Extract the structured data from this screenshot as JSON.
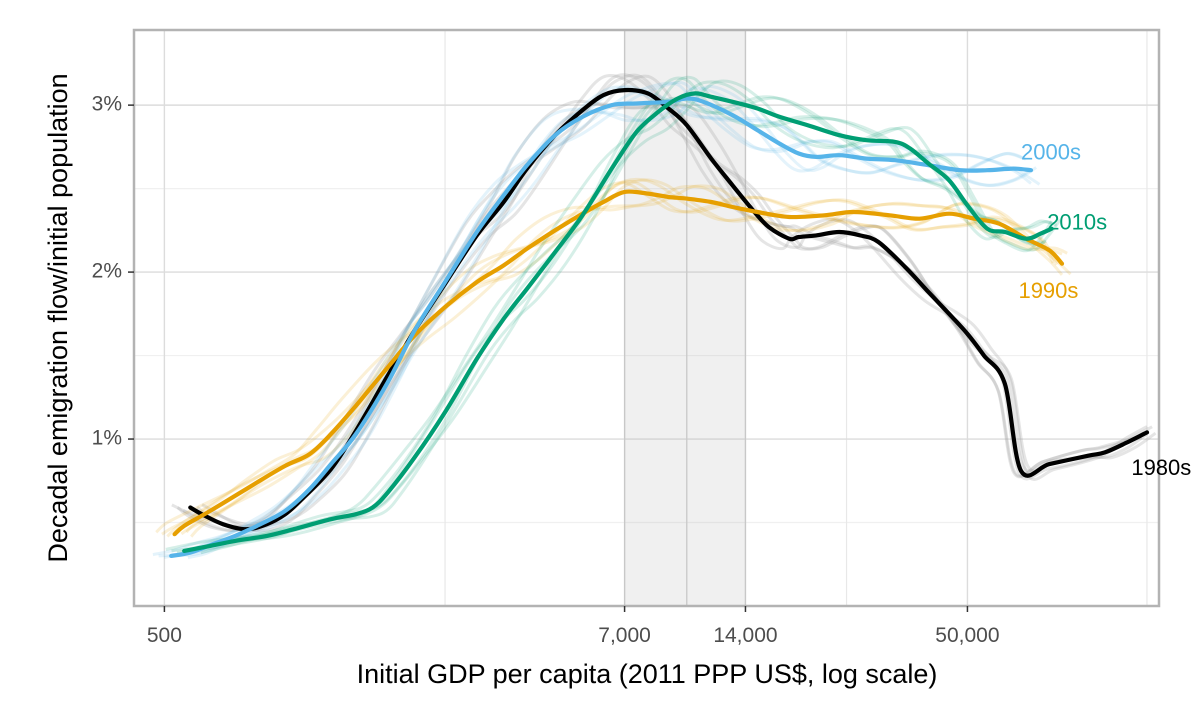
{
  "chart_data": {
    "type": "line",
    "xlabel": "Initial GDP per capita (2011 PPP US$, log scale)",
    "ylabel": "Decadal emigration flow/initial population",
    "x_scale": "log",
    "xlim": [
      420,
      150000
    ],
    "ylim": [
      0.0,
      3.45
    ],
    "x_ticks": [
      {
        "value": 500,
        "label": "500"
      },
      {
        "value": 7000,
        "label": "7,000"
      },
      {
        "value": 14000,
        "label": "14,000"
      },
      {
        "value": 50000,
        "label": "50,000"
      }
    ],
    "x_minor_gridlines": [
      2500,
      10000,
      25000,
      140000
    ],
    "y_ticks": [
      {
        "value": 1.0,
        "label": "1%"
      },
      {
        "value": 2.0,
        "label": "2%"
      },
      {
        "value": 3.0,
        "label": "3%"
      }
    ],
    "y_minor_gridlines": [
      0.5,
      1.5,
      2.5
    ],
    "shaded_band": {
      "x_from": 7000,
      "x_to": 14000,
      "divider_x": 10000
    },
    "grid": true,
    "legend": "none (direct labels at line ends)",
    "series": [
      {
        "name": "1980s",
        "color": "#000000",
        "label_color": "#000000",
        "points": [
          [
            580,
            0.59
          ],
          [
            620,
            0.55
          ],
          [
            700,
            0.49
          ],
          [
            800,
            0.46
          ],
          [
            900,
            0.49
          ],
          [
            1000,
            0.55
          ],
          [
            1100,
            0.64
          ],
          [
            1300,
            0.82
          ],
          [
            1500,
            1.05
          ],
          [
            1800,
            1.38
          ],
          [
            2100,
            1.65
          ],
          [
            2500,
            1.93
          ],
          [
            3000,
            2.22
          ],
          [
            3500,
            2.42
          ],
          [
            4000,
            2.62
          ],
          [
            4700,
            2.82
          ],
          [
            5500,
            2.97
          ],
          [
            6200,
            3.06
          ],
          [
            7000,
            3.09
          ],
          [
            8000,
            3.07
          ],
          [
            9000,
            2.98
          ],
          [
            10000,
            2.88
          ],
          [
            11500,
            2.68
          ],
          [
            13000,
            2.52
          ],
          [
            14500,
            2.38
          ],
          [
            16000,
            2.27
          ],
          [
            18000,
            2.2
          ],
          [
            19000,
            2.21
          ],
          [
            21000,
            2.22
          ],
          [
            24000,
            2.24
          ],
          [
            27000,
            2.22
          ],
          [
            30000,
            2.18
          ],
          [
            35000,
            2.03
          ],
          [
            40000,
            1.88
          ],
          [
            45000,
            1.75
          ],
          [
            50000,
            1.63
          ],
          [
            55000,
            1.5
          ],
          [
            62000,
            1.33
          ],
          [
            68000,
            0.81
          ],
          [
            80000,
            0.85
          ],
          [
            100000,
            0.9
          ],
          [
            110000,
            0.92
          ],
          [
            125000,
            0.98
          ],
          [
            140000,
            1.04
          ]
        ],
        "label": "1980s",
        "label_at": [
          128000,
          0.82
        ]
      },
      {
        "name": "1990s",
        "color": "#E69F00",
        "label_color": "#E69F00",
        "points": [
          [
            530,
            0.43
          ],
          [
            560,
            0.48
          ],
          [
            640,
            0.56
          ],
          [
            750,
            0.66
          ],
          [
            850,
            0.74
          ],
          [
            1000,
            0.84
          ],
          [
            1150,
            0.91
          ],
          [
            1300,
            1.03
          ],
          [
            1500,
            1.2
          ],
          [
            1800,
            1.43
          ],
          [
            2100,
            1.62
          ],
          [
            2500,
            1.79
          ],
          [
            3000,
            1.94
          ],
          [
            3500,
            2.04
          ],
          [
            4000,
            2.14
          ],
          [
            4700,
            2.25
          ],
          [
            5500,
            2.35
          ],
          [
            6200,
            2.42
          ],
          [
            7000,
            2.48
          ],
          [
            8000,
            2.47
          ],
          [
            9000,
            2.45
          ],
          [
            10000,
            2.44
          ],
          [
            11500,
            2.42
          ],
          [
            13000,
            2.39
          ],
          [
            15000,
            2.36
          ],
          [
            18000,
            2.33
          ],
          [
            22000,
            2.34
          ],
          [
            26000,
            2.36
          ],
          [
            32000,
            2.34
          ],
          [
            38000,
            2.32
          ],
          [
            45000,
            2.35
          ],
          [
            52000,
            2.32
          ],
          [
            60000,
            2.29
          ],
          [
            70000,
            2.2
          ],
          [
            80000,
            2.13
          ],
          [
            86000,
            2.05
          ]
        ],
        "label": "1990s",
        "label_at": [
          67000,
          1.88
        ]
      },
      {
        "name": "2000s",
        "color": "#56B4E9",
        "label_color": "#56B4E9",
        "points": [
          [
            520,
            0.3
          ],
          [
            580,
            0.32
          ],
          [
            660,
            0.37
          ],
          [
            750,
            0.42
          ],
          [
            850,
            0.48
          ],
          [
            1000,
            0.57
          ],
          [
            1150,
            0.7
          ],
          [
            1300,
            0.85
          ],
          [
            1500,
            1.03
          ],
          [
            1800,
            1.34
          ],
          [
            2100,
            1.65
          ],
          [
            2500,
            1.94
          ],
          [
            3000,
            2.24
          ],
          [
            3500,
            2.46
          ],
          [
            4000,
            2.64
          ],
          [
            4700,
            2.82
          ],
          [
            5500,
            2.93
          ],
          [
            6500,
            3.0
          ],
          [
            7500,
            3.01
          ],
          [
            9000,
            3.02
          ],
          [
            10000,
            3.04
          ],
          [
            11000,
            3.02
          ],
          [
            13000,
            2.94
          ],
          [
            15000,
            2.85
          ],
          [
            17000,
            2.77
          ],
          [
            19000,
            2.71
          ],
          [
            21000,
            2.69
          ],
          [
            24000,
            2.7
          ],
          [
            28000,
            2.68
          ],
          [
            33000,
            2.67
          ],
          [
            40000,
            2.64
          ],
          [
            48000,
            2.61
          ],
          [
            56000,
            2.61
          ],
          [
            65000,
            2.62
          ],
          [
            72000,
            2.61
          ]
        ],
        "label": "2000s",
        "label_at": [
          68000,
          2.71
        ]
      },
      {
        "name": "2010s",
        "color": "#009E73",
        "label_color": "#009E73",
        "points": [
          [
            560,
            0.33
          ],
          [
            650,
            0.36
          ],
          [
            750,
            0.39
          ],
          [
            900,
            0.42
          ],
          [
            1050,
            0.46
          ],
          [
            1300,
            0.52
          ],
          [
            1500,
            0.55
          ],
          [
            1650,
            0.59
          ],
          [
            1800,
            0.68
          ],
          [
            2100,
            0.89
          ],
          [
            2500,
            1.16
          ],
          [
            3000,
            1.48
          ],
          [
            3500,
            1.72
          ],
          [
            4000,
            1.9
          ],
          [
            4700,
            2.12
          ],
          [
            5500,
            2.34
          ],
          [
            6500,
            2.62
          ],
          [
            7500,
            2.84
          ],
          [
            8500,
            2.96
          ],
          [
            9500,
            3.04
          ],
          [
            10500,
            3.07
          ],
          [
            11500,
            3.05
          ],
          [
            13000,
            3.02
          ],
          [
            15000,
            2.98
          ],
          [
            17000,
            2.93
          ],
          [
            20000,
            2.88
          ],
          [
            24000,
            2.82
          ],
          [
            28000,
            2.79
          ],
          [
            33000,
            2.78
          ],
          [
            36000,
            2.74
          ],
          [
            40000,
            2.65
          ],
          [
            45000,
            2.55
          ],
          [
            50000,
            2.4
          ],
          [
            56000,
            2.26
          ],
          [
            62000,
            2.24
          ],
          [
            70000,
            2.2
          ],
          [
            76000,
            2.23
          ],
          [
            81000,
            2.26
          ]
        ],
        "label": "2010s",
        "label_at": [
          79000,
          2.29
        ]
      }
    ]
  }
}
